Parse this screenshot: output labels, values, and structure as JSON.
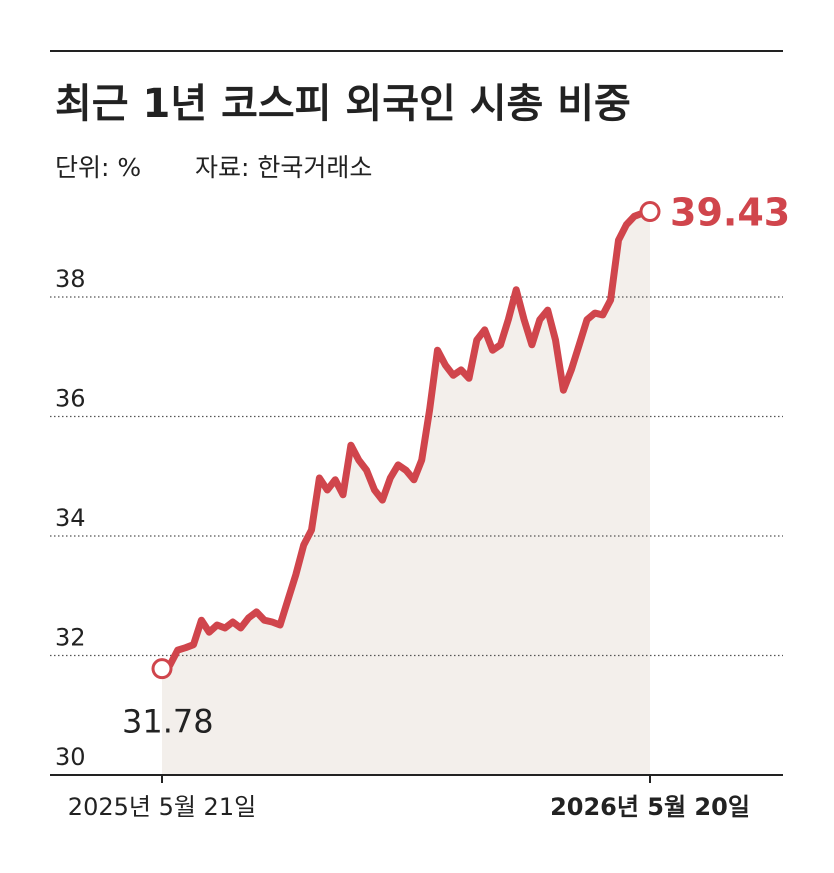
{
  "chart_data": {
    "type": "line",
    "title": "최근 1년 코스피 외국인 시총 비중",
    "unit": "단위: %",
    "source": "자료: 한국거래소",
    "categories": [
      "2025년 5월 21일",
      null,
      null,
      null,
      null,
      null,
      null,
      null,
      null,
      null,
      null,
      null,
      null,
      null,
      null,
      null,
      null,
      null,
      null,
      null,
      null,
      null,
      null,
      null,
      null,
      null,
      null,
      null,
      null,
      null,
      null,
      null,
      null,
      null,
      null,
      null,
      null,
      null,
      null,
      null,
      null,
      null,
      null,
      null,
      null,
      null,
      null,
      null,
      null,
      null,
      null,
      null,
      null,
      null,
      null,
      null,
      null,
      null,
      null,
      null,
      null,
      null,
      "2026년 5월 20일"
    ],
    "series": [
      {
        "name": null,
        "color": "#d0454c",
        "fill": "#f3efeb",
        "values": [
          31.78,
          31.84,
          32.09,
          32.13,
          32.18,
          32.59,
          32.39,
          32.51,
          32.46,
          32.56,
          32.46,
          32.63,
          32.73,
          32.59,
          32.56,
          32.51,
          32.93,
          33.35,
          33.85,
          34.1,
          34.97,
          34.77,
          34.94,
          34.69,
          35.52,
          35.27,
          35.1,
          34.77,
          34.6,
          34.97,
          35.19,
          35.1,
          34.94,
          35.27,
          36.11,
          37.11,
          36.86,
          36.69,
          36.78,
          36.64,
          37.28,
          37.45,
          37.11,
          37.2,
          37.62,
          38.12,
          37.62,
          37.2,
          37.62,
          37.78,
          37.28,
          36.44,
          36.78,
          37.2,
          37.62,
          37.73,
          37.7,
          37.95,
          38.95,
          39.21,
          39.35,
          39.4,
          39.43
        ]
      }
    ],
    "ylim": [
      30,
      40
    ],
    "yticks": [
      30,
      32,
      34,
      36,
      38
    ],
    "grid": true
  }
}
